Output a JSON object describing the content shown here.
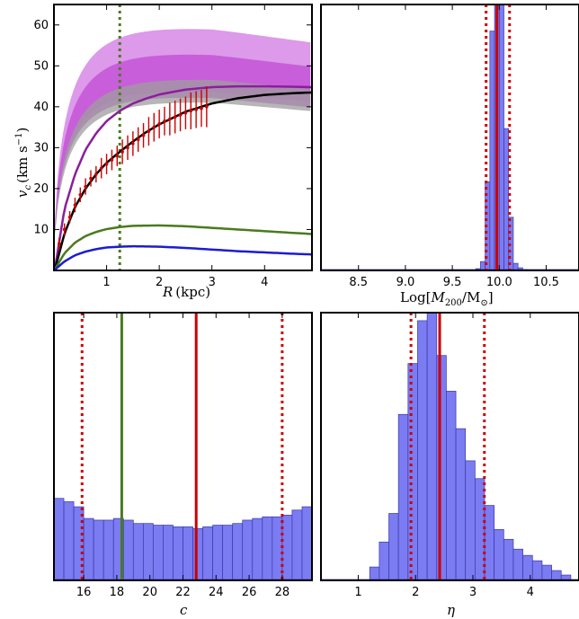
{
  "chart_data": [
    {
      "type": "line",
      "panel": "rotation-curve",
      "xlabel": "R",
      "xunit": "(kpc)",
      "ylabel": "v",
      "ylabel_sub": "c",
      "yunit": "(km s",
      "yunit_sup": "−1",
      "xlim": [
        0,
        4.9
      ],
      "ylim": [
        0,
        65
      ],
      "xticks": [
        1,
        2,
        3,
        4
      ],
      "yticks": [
        10,
        20,
        30,
        40,
        50,
        60
      ],
      "vline": {
        "x": 1.25,
        "color": "#4a7a1e",
        "style": "dotted"
      },
      "bands": [
        {
          "name": "",
          "color": "#d98ee8",
          "opacity": 0.9,
          "vmax": 56.5,
          "rs": 0.9,
          "lo_ratio": 0.74,
          "hi_ratio": 1.0
        },
        {
          "name": "",
          "color": "#c34fd6",
          "opacity": 0.8,
          "vmax": 50.5,
          "rs": 0.9,
          "lo_ratio": 0.8,
          "hi_ratio": 1.0
        },
        {
          "name": "",
          "color": "#9e9e9e",
          "opacity": 0.75,
          "vmax": 44.5,
          "rs": 0.95,
          "lo_ratio": 0.88,
          "hi_ratio": 1.0
        }
      ],
      "series": [
        {
          "name": "",
          "color": "#8a1f9a",
          "width": 2.5,
          "x": [
            0.02,
            0.2,
            0.4,
            0.6,
            0.8,
            1.0,
            1.25,
            1.5,
            1.75,
            2.0,
            2.5,
            3.0,
            3.5,
            4.0,
            4.5,
            4.9
          ],
          "y": [
            0.5,
            15,
            23.5,
            29.5,
            33.5,
            36.5,
            39,
            40.8,
            42,
            43,
            44.2,
            44.8,
            45,
            45,
            44.9,
            44.8
          ]
        },
        {
          "name": "",
          "color": "#000000",
          "width": 2.5,
          "x": [
            0.02,
            0.2,
            0.4,
            0.6,
            0.8,
            1.0,
            1.25,
            1.5,
            1.75,
            2.0,
            2.5,
            3.0,
            3.5,
            4.0,
            4.5,
            4.9
          ],
          "y": [
            0.3,
            9,
            15.5,
            20,
            23.5,
            26.3,
            29,
            31.5,
            33.8,
            35.7,
            38.8,
            40.8,
            42.1,
            42.9,
            43.3,
            43.5
          ]
        },
        {
          "name": "",
          "color": "#4a7a1e",
          "width": 2.5,
          "x": [
            0.02,
            0.2,
            0.4,
            0.6,
            0.8,
            1.0,
            1.25,
            1.5,
            2.0,
            2.5,
            3.0,
            3.5,
            4.0,
            4.5,
            4.9
          ],
          "y": [
            0.3,
            4.2,
            6.8,
            8.4,
            9.4,
            10.1,
            10.6,
            10.9,
            11.0,
            10.8,
            10.4,
            10.0,
            9.6,
            9.2,
            8.9
          ]
        },
        {
          "name": "",
          "color": "#1c1cd0",
          "width": 2.5,
          "x": [
            0.02,
            0.2,
            0.4,
            0.6,
            0.8,
            1.0,
            1.25,
            1.5,
            2.0,
            2.5,
            3.0,
            3.5,
            4.0,
            4.5,
            4.9
          ],
          "y": [
            0.2,
            2.2,
            3.7,
            4.6,
            5.2,
            5.6,
            5.8,
            5.9,
            5.8,
            5.5,
            5.1,
            4.7,
            4.4,
            4.1,
            3.9
          ]
        }
      ],
      "points": {
        "color": "#cc0000",
        "x": [
          0.1,
          0.2,
          0.3,
          0.4,
          0.5,
          0.6,
          0.7,
          0.8,
          0.9,
          1.0,
          1.1,
          1.2,
          1.3,
          1.4,
          1.5,
          1.6,
          1.7,
          1.8,
          1.9,
          2.0,
          2.1,
          2.2,
          2.3,
          2.4,
          2.5,
          2.6,
          2.7,
          2.8,
          2.9
        ],
        "y": [
          6.5,
          10,
          13,
          16,
          18.5,
          20.5,
          22.5,
          23.5,
          25,
          26,
          27,
          28,
          29,
          30,
          31,
          32,
          33,
          34,
          35,
          35.8,
          36.5,
          37,
          37.5,
          38,
          38.5,
          39,
          39.3,
          39.6,
          40
        ],
        "err": [
          1.5,
          1.5,
          1.5,
          1.8,
          1.8,
          2,
          2,
          2,
          2.5,
          2.5,
          2.5,
          2.5,
          3,
          3,
          3,
          3,
          3,
          3.5,
          3.5,
          3.5,
          3.5,
          4,
          4,
          4,
          4,
          4.5,
          4.5,
          4.5,
          5
        ]
      }
    },
    {
      "type": "bar",
      "panel": "mass-histogram",
      "xlabel": "Log[",
      "xlabel_sym": "M",
      "xlabel_sub": "200",
      "xlabel_mid": "/M",
      "xlabel_sun": "⊙",
      "xlabel_end": "]",
      "xlim": [
        8.1,
        10.85
      ],
      "xticks": [
        8.5,
        9.0,
        9.5,
        10.0,
        10.5
      ],
      "xticklabels": [
        "8.5",
        "9.0",
        "9.5",
        "10.0",
        "10.5"
      ],
      "bin_edges": [
        9.75,
        9.8,
        9.85,
        9.9,
        9.95,
        10.0,
        10.05,
        10.1,
        10.15,
        10.2,
        10.25,
        10.3,
        10.35,
        10.4
      ],
      "counts": [
        2,
        10,
        100,
        270,
        300,
        300,
        160,
        60,
        8,
        3,
        1,
        0.3,
        0
      ],
      "ymax": 300,
      "bar_color": "#7b7bf2",
      "vlines": [
        {
          "x": 9.975,
          "color": "#cc0000",
          "style": "solid"
        },
        {
          "x": 9.86,
          "color": "#cc0000",
          "style": "dotted"
        },
        {
          "x": 10.11,
          "color": "#cc0000",
          "style": "dotted"
        }
      ]
    },
    {
      "type": "bar",
      "panel": "concentration-histogram",
      "xlabel": "c",
      "xlim": [
        14.2,
        29.8
      ],
      "xticks": [
        16,
        18,
        20,
        22,
        24,
        26,
        28
      ],
      "xticklabels": [
        "16",
        "18",
        "20",
        "22",
        "24",
        "26",
        "28"
      ],
      "bin_start": 14.2,
      "bin_width": 0.6,
      "counts": [
        49,
        47,
        44,
        37,
        36,
        36,
        37,
        36,
        34,
        34,
        33,
        33,
        32,
        32,
        31,
        32,
        33,
        33,
        34,
        36,
        37,
        38,
        38,
        39,
        42,
        44,
        47,
        50,
        52,
        55,
        56
      ],
      "ymax": 160,
      "bar_color": "#7b7bf2",
      "vlines": [
        {
          "x": 22.8,
          "color": "#cc0000",
          "style": "solid"
        },
        {
          "x": 18.3,
          "color": "#4a7a1e",
          "style": "solid"
        },
        {
          "x": 15.9,
          "color": "#cc0000",
          "style": "dotted"
        },
        {
          "x": 28.0,
          "color": "#cc0000",
          "style": "dotted"
        }
      ]
    },
    {
      "type": "bar",
      "panel": "eta-histogram",
      "xlabel": "η",
      "xlim": [
        0.35,
        4.85
      ],
      "xticks": [
        1,
        2,
        3,
        4
      ],
      "xticklabels": [
        "1",
        "2",
        "3",
        "4"
      ],
      "bin_start": 1.2,
      "bin_width": 0.167,
      "counts": [
        15,
        43,
        75,
        186,
        243,
        291,
        300,
        252,
        212,
        170,
        134,
        114,
        84,
        57,
        46,
        35,
        28,
        22,
        17,
        11,
        6
      ],
      "ymax": 300,
      "bar_color": "#7b7bf2",
      "vlines": [
        {
          "x": 2.42,
          "color": "#cc0000",
          "style": "solid"
        },
        {
          "x": 1.92,
          "color": "#cc0000",
          "style": "dotted"
        },
        {
          "x": 3.2,
          "color": "#cc0000",
          "style": "dotted"
        }
      ]
    }
  ]
}
